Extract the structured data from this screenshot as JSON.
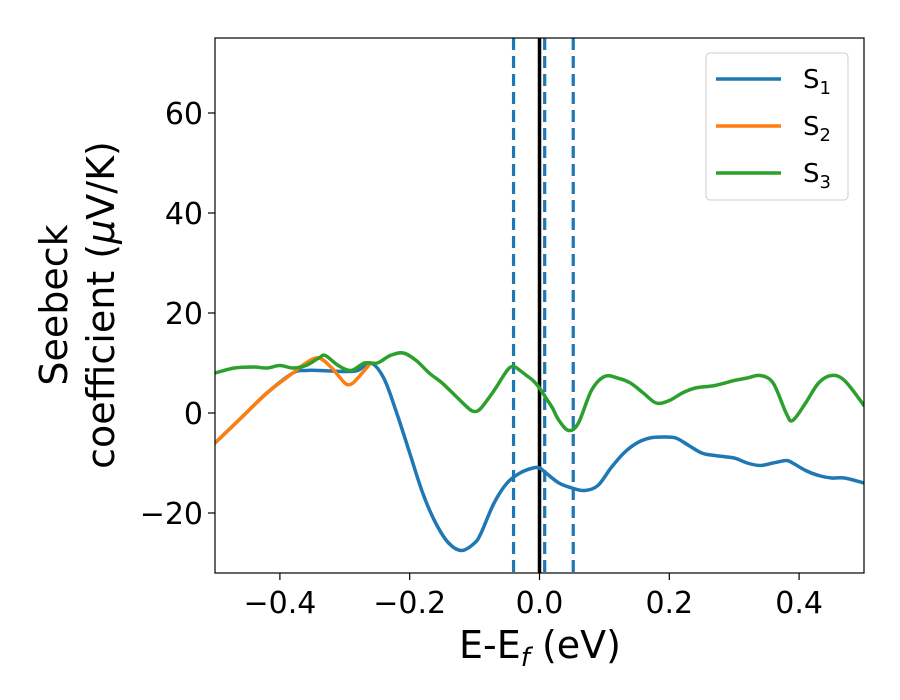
{
  "chart_data": {
    "type": "line",
    "xlabel": {
      "main": "E-E",
      "sub": "f",
      "unit": " (eV)"
    },
    "ylabel": {
      "line1": "Seebeck",
      "line2_prefix": "coefficient  (",
      "mu": "μ",
      "line2_suffix": "V/K)"
    },
    "xlim": [
      -0.5,
      0.5
    ],
    "ylim": [
      -32,
      75
    ],
    "xticks": [
      -0.4,
      -0.2,
      0.0,
      0.2,
      0.4
    ],
    "xtick_labels": [
      "−0.4",
      "−0.2",
      "0.0",
      "0.2",
      "0.4"
    ],
    "yticks": [
      -20,
      0,
      20,
      40,
      60
    ],
    "ytick_labels": [
      "−20",
      "0",
      "20",
      "40",
      "60"
    ],
    "grid": false,
    "legend_position": "top-right",
    "vlines": [
      {
        "x": 0.0,
        "style": "solid",
        "color": "#000000"
      },
      {
        "x": -0.04,
        "style": "dashed",
        "color": "#1f77b4"
      },
      {
        "x": 0.008,
        "style": "dashed",
        "color": "#1f77b4"
      },
      {
        "x": 0.052,
        "style": "dashed",
        "color": "#1f77b4"
      }
    ],
    "series": [
      {
        "name": "S",
        "sub": "1",
        "color": "#1f77b4",
        "x": [
          -0.5,
          -0.46,
          -0.42,
          -0.38,
          -0.36,
          -0.34,
          -0.3,
          -0.28,
          -0.26,
          -0.24,
          -0.22,
          -0.2,
          -0.18,
          -0.16,
          -0.14,
          -0.12,
          -0.1,
          -0.09,
          -0.07,
          -0.05,
          -0.03,
          -0.01,
          0.0,
          0.01,
          0.03,
          0.05,
          0.07,
          0.09,
          0.11,
          0.13,
          0.15,
          0.17,
          0.19,
          0.21,
          0.23,
          0.25,
          0.27,
          0.3,
          0.32,
          0.34,
          0.36,
          0.38,
          0.39,
          0.41,
          0.43,
          0.45,
          0.47,
          0.5
        ],
        "y": [
          -6,
          -1,
          4,
          8,
          8.5,
          8.5,
          8.3,
          8.5,
          10,
          7,
          0,
          -8,
          -16,
          -22,
          -26,
          -27.5,
          -26,
          -24,
          -18,
          -14,
          -12,
          -11,
          -11,
          -12,
          -14,
          -15,
          -15.5,
          -14.5,
          -11,
          -8,
          -6,
          -5,
          -4.8,
          -5,
          -6.5,
          -8,
          -8.5,
          -9,
          -10,
          -10.5,
          -10,
          -9.5,
          -10,
          -11.5,
          -12.5,
          -13,
          -13,
          -14
        ]
      },
      {
        "name": "S",
        "sub": "2",
        "color": "#ff7f0e",
        "x": [
          -0.5,
          -0.46,
          -0.42,
          -0.38,
          -0.36,
          -0.34,
          -0.32,
          -0.3,
          -0.29,
          -0.28,
          -0.26
        ],
        "y": [
          -6,
          -1,
          4,
          8,
          10,
          11,
          9,
          6,
          5.8,
          7,
          10
        ]
      },
      {
        "name": "S",
        "sub": "3",
        "color": "#2ca02c",
        "x": [
          -0.5,
          -0.47,
          -0.44,
          -0.42,
          -0.4,
          -0.38,
          -0.36,
          -0.34,
          -0.33,
          -0.31,
          -0.29,
          -0.27,
          -0.25,
          -0.23,
          -0.21,
          -0.19,
          -0.17,
          -0.15,
          -0.13,
          -0.11,
          -0.1,
          -0.09,
          -0.07,
          -0.05,
          -0.04,
          -0.03,
          -0.02,
          -0.01,
          0.0,
          0.01,
          0.02,
          0.03,
          0.045,
          0.06,
          0.08,
          0.1,
          0.12,
          0.14,
          0.16,
          0.18,
          0.2,
          0.22,
          0.24,
          0.27,
          0.3,
          0.32,
          0.34,
          0.36,
          0.38,
          0.39,
          0.41,
          0.43,
          0.45,
          0.47,
          0.5
        ],
        "y": [
          8,
          9,
          9.2,
          9,
          9.5,
          9,
          9.5,
          11,
          11.5,
          9.5,
          8.5,
          10,
          10,
          11.5,
          12,
          10.5,
          8,
          6,
          3.5,
          1,
          0.3,
          1,
          4.5,
          8.5,
          9.3,
          8.5,
          7.5,
          6.5,
          5,
          3,
          1,
          -1.5,
          -3.5,
          -2,
          4.5,
          7.3,
          7,
          6,
          4,
          2,
          2.5,
          4,
          5,
          5.5,
          6.5,
          7,
          7.5,
          6,
          0,
          -1.5,
          2,
          6,
          7.5,
          6.5,
          1.5
        ]
      }
    ]
  }
}
